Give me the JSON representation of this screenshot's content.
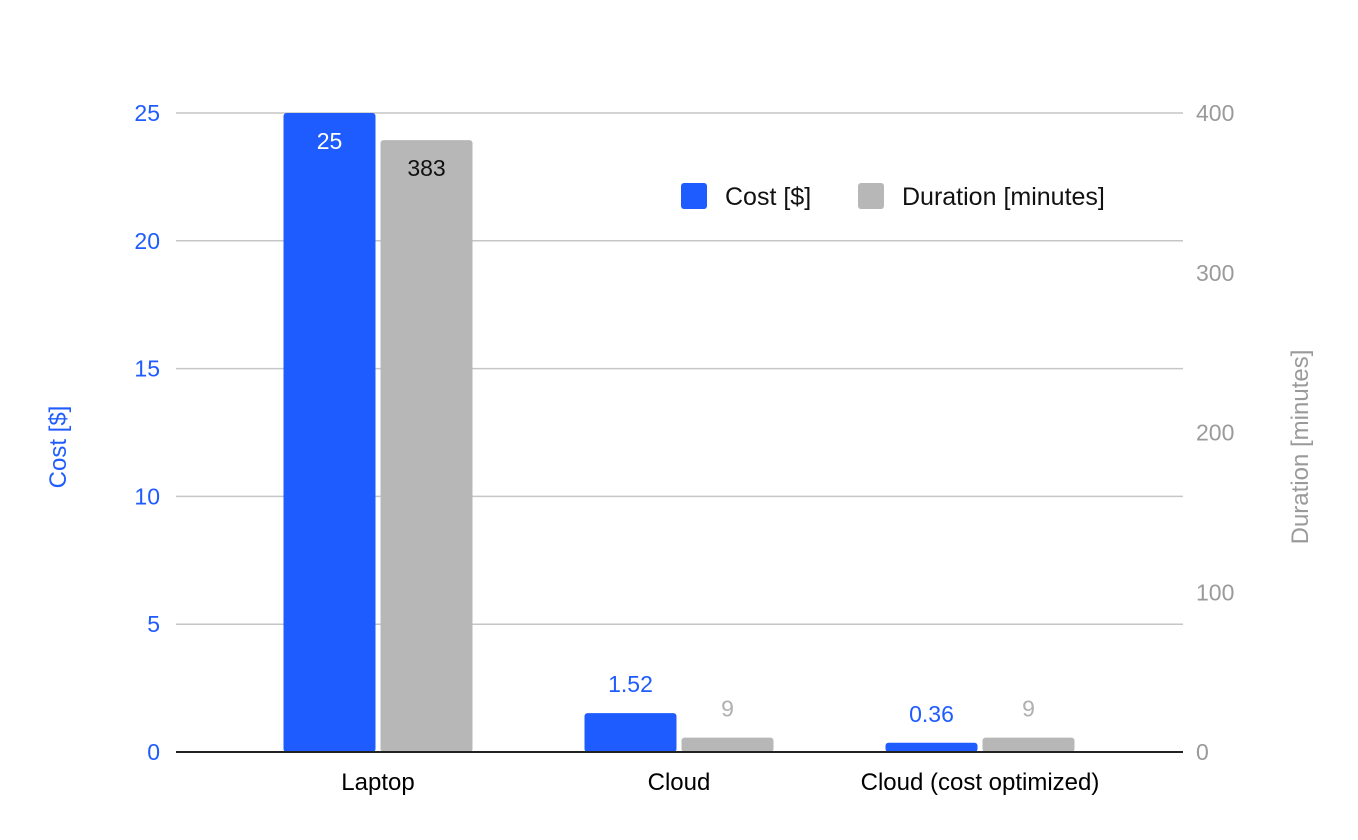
{
  "chart_data": {
    "type": "bar",
    "categories": [
      "Laptop",
      "Cloud",
      "Cloud (cost optimized)"
    ],
    "series": [
      {
        "name": "Cost [$]",
        "axis": "left",
        "color": "#1f5cff",
        "values": [
          25,
          1.52,
          0.36
        ],
        "labels": [
          "25",
          "1.52",
          "0.36"
        ],
        "label_color_inside": "#ffffff",
        "label_color_outside": "#1f5cff"
      },
      {
        "name": "Duration [minutes]",
        "axis": "right",
        "color": "#b7b7b7",
        "values": [
          383,
          9,
          9
        ],
        "labels": [
          "383",
          "9",
          "9"
        ],
        "label_color_inside": "#111111",
        "label_color_outside": "#b0b0b0"
      }
    ],
    "ylabel_left": "Cost [$]",
    "ylabel_right": "Duration [minutes]",
    "ylim_left": [
      0,
      25
    ],
    "ylim_right": [
      0,
      400
    ],
    "yticks_left": [
      "0",
      "5",
      "10",
      "15",
      "20",
      "25"
    ],
    "yticks_right": [
      "0",
      "100",
      "200",
      "300",
      "400"
    ],
    "grid": true,
    "legend_position": "top-right"
  }
}
